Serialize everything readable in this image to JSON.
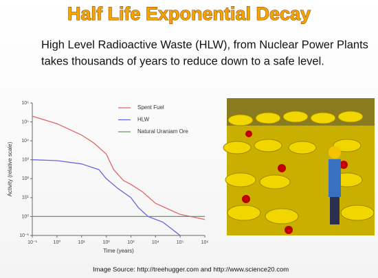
{
  "title": "Half Life Exponential Decay",
  "subtitle_lines": [
    "High Level Radioactive Waste (HLW), from Nuclear Power Plants",
    "takes thousands of years to reduce down to a safe level."
  ],
  "footer": "Image Source: http://treehugger.com     and    http://www.science20.com",
  "chart_data": {
    "type": "line",
    "x_label": "Time (years)",
    "y_label": "Activity (relative scale)",
    "log_x": true,
    "log_y": true,
    "grid": false,
    "legend": "upper right",
    "xlim": [
      0.1,
      1000000
    ],
    "ylim": [
      0.1,
      1000000
    ],
    "xticks": [
      {
        "value": 0.1,
        "label": "10⁻¹"
      },
      {
        "value": 1,
        "label": "10⁰"
      },
      {
        "value": 10,
        "label": "10¹"
      },
      {
        "value": 100,
        "label": "10²"
      },
      {
        "value": 1000,
        "label": "10³"
      },
      {
        "value": 10000,
        "label": "10⁴"
      },
      {
        "value": 100000,
        "label": "10⁵"
      },
      {
        "value": 1000000,
        "label": "10⁶"
      }
    ],
    "yticks": [
      {
        "value": 0.1,
        "label": "10⁻¹"
      },
      {
        "value": 1,
        "label": "10⁰"
      },
      {
        "value": 10,
        "label": "10¹"
      },
      {
        "value": 100,
        "label": "10²"
      },
      {
        "value": 1000,
        "label": "10³"
      },
      {
        "value": 10000,
        "label": "10⁴"
      },
      {
        "value": 100000,
        "label": "10⁵"
      },
      {
        "value": 1000000,
        "label": "10⁶"
      }
    ],
    "series": [
      {
        "name": "Spent Fuel",
        "color": "#e06464",
        "x": [
          0.1,
          1,
          10,
          30,
          100,
          200,
          500,
          1000,
          3000,
          10000,
          100000,
          1000000
        ],
        "values": [
          200000,
          80000,
          20000,
          8000,
          2000,
          300,
          80,
          50,
          20,
          5,
          1.3,
          0.7
        ]
      },
      {
        "name": "HLW",
        "color": "#6666dd",
        "x": [
          0.1,
          1,
          10,
          50,
          100,
          300,
          1000,
          2000,
          5000,
          20000,
          100000
        ],
        "values": [
          1000,
          900,
          600,
          300,
          100,
          30,
          10,
          3,
          1,
          0.5,
          0.1
        ]
      },
      {
        "name": "Natural Uraniam Ore",
        "color": "#5c9a5c",
        "x": [
          0.1,
          1000000
        ],
        "values": [
          1,
          1
        ]
      }
    ]
  }
}
